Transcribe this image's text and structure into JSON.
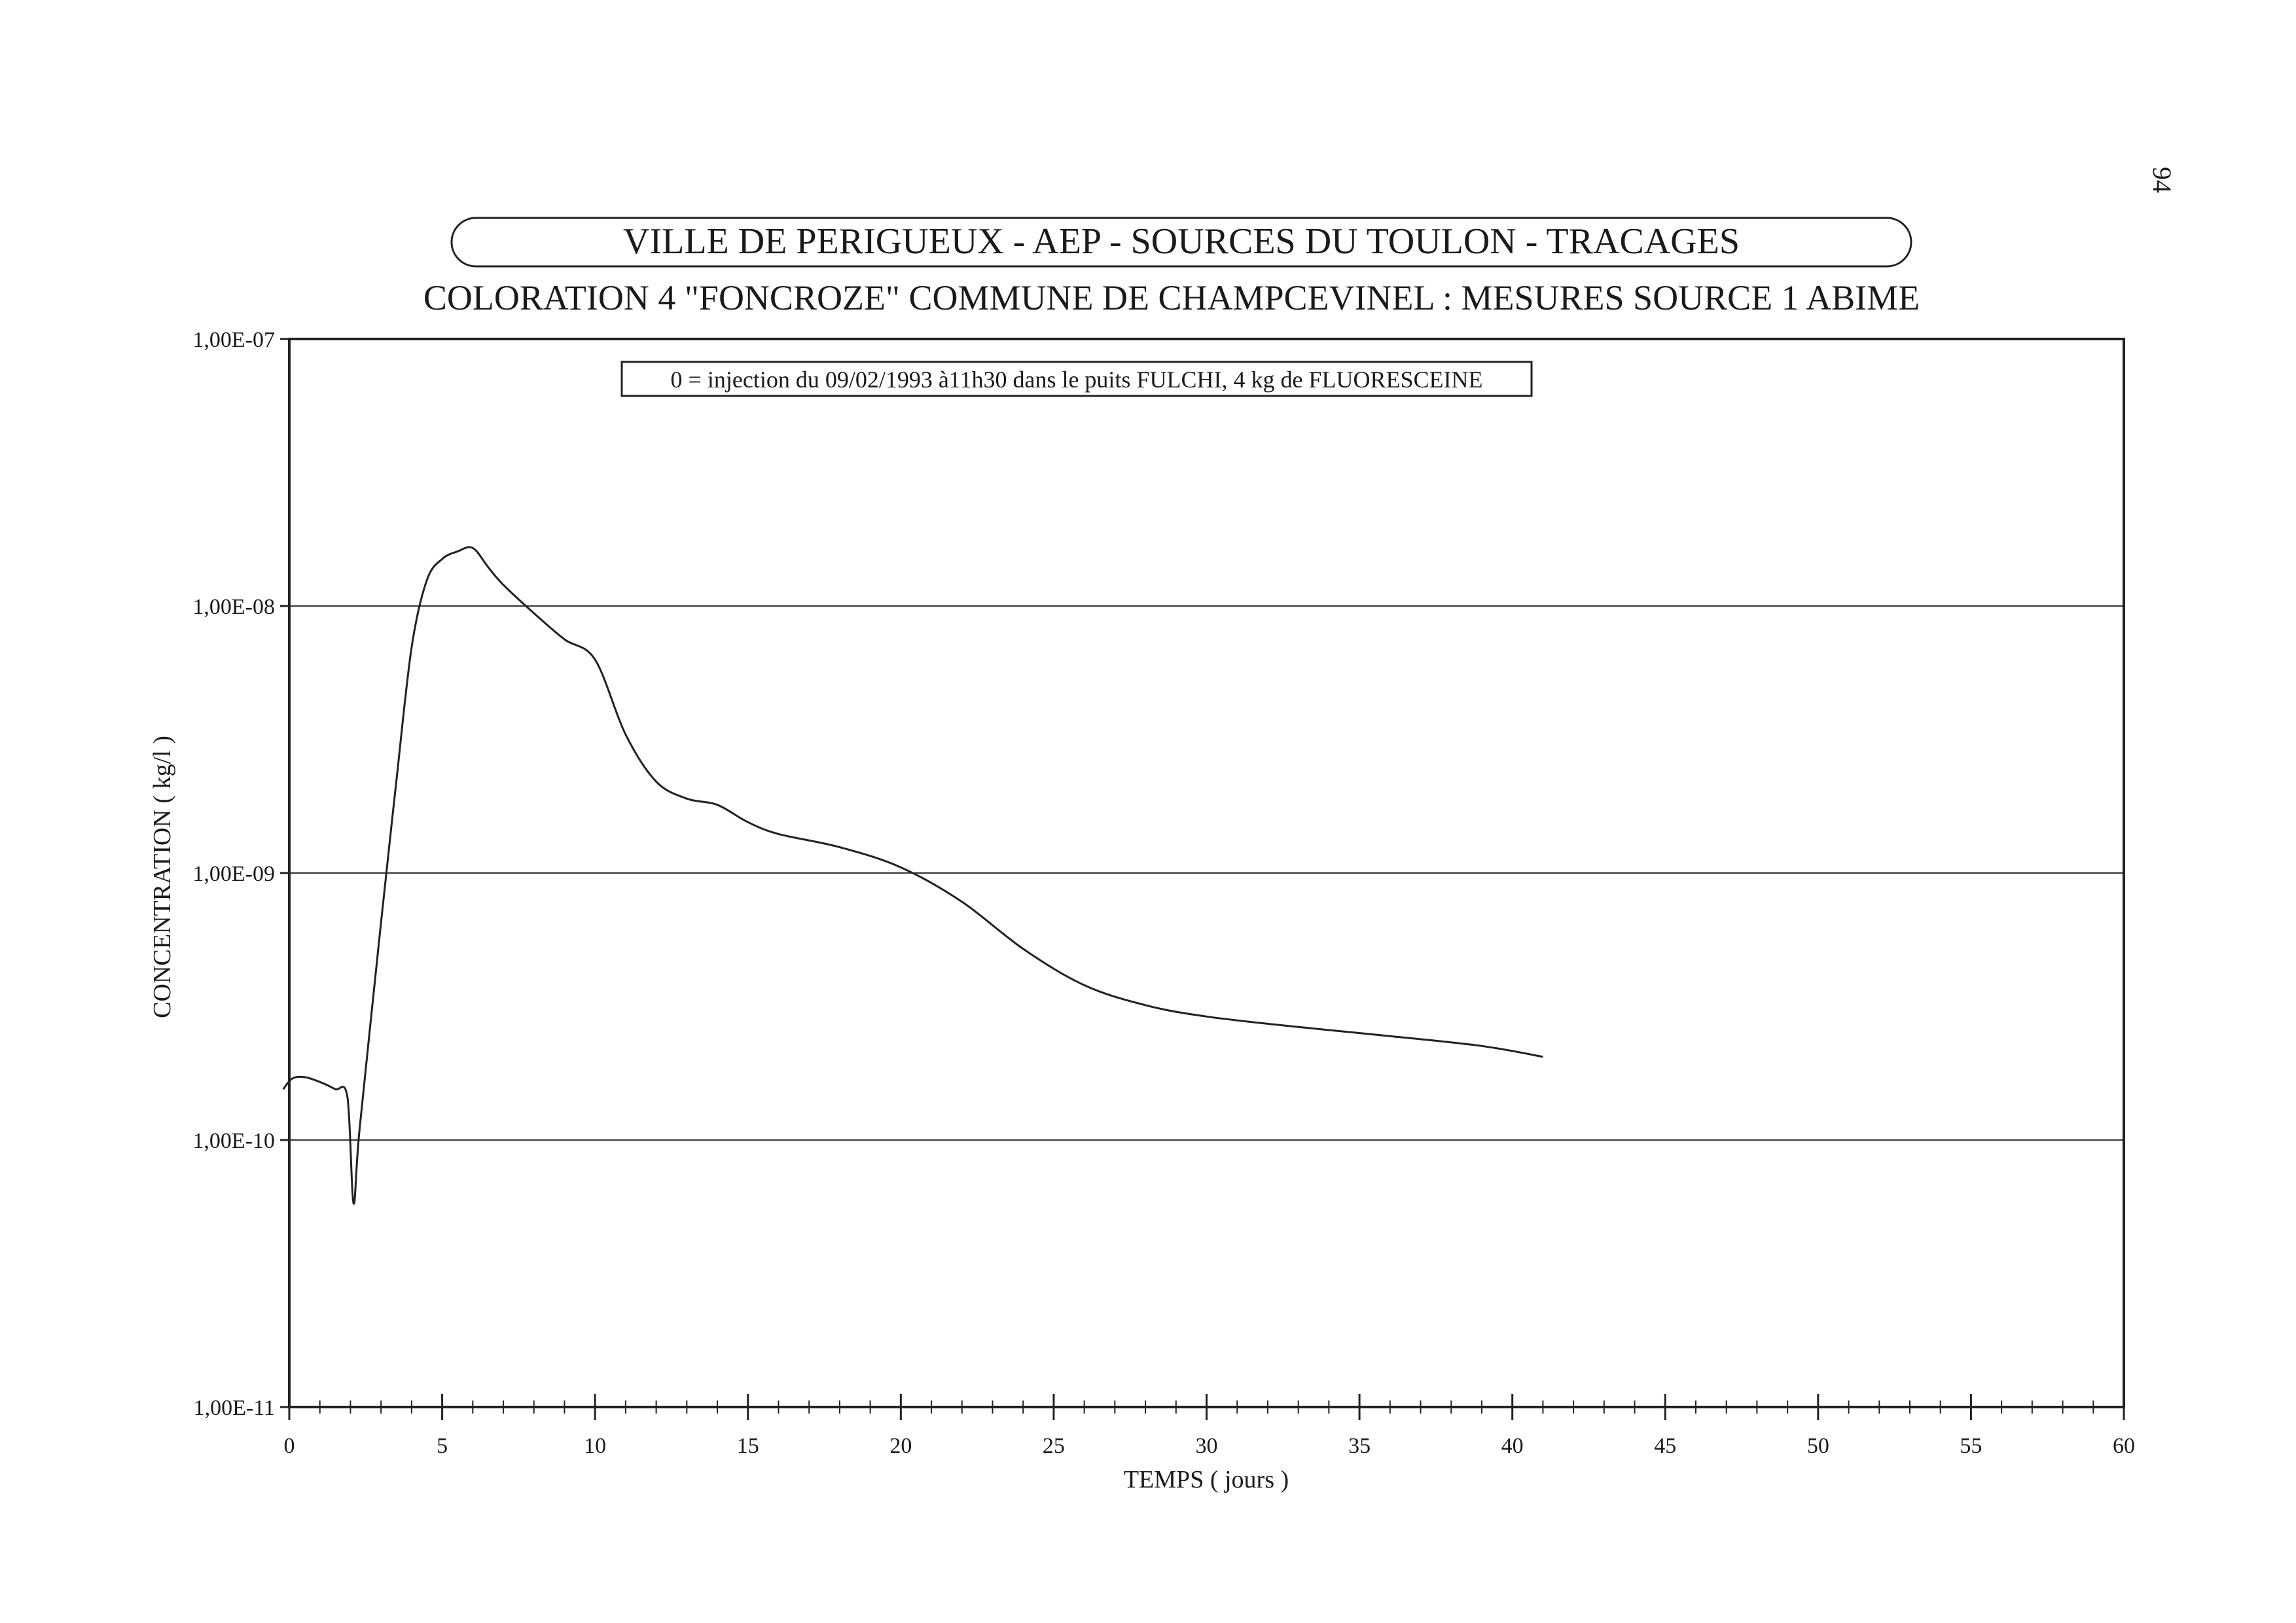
{
  "page_number": "94",
  "chart_data": {
    "type": "line",
    "title": "VILLE DE PERIGUEUX - AEP - SOURCES DU TOULON - TRACAGES",
    "subtitle": "COLORATION 4 \"FONCROZE\" COMMUNE DE CHAMPCEVINEL : MESURES SOURCE 1 ABIME",
    "annotation": "0 = injection du 09/02/1993 à11h30 dans le puits FULCHI, 4 kg de FLUORESCEINE",
    "xlabel": "TEMPS ( jours )",
    "ylabel": "CONCENTRATION ( kg/l )",
    "xlim": [
      0,
      60
    ],
    "ylim": [
      1e-11,
      1e-07
    ],
    "yscale": "log",
    "x_ticks": [
      0,
      5,
      10,
      15,
      20,
      25,
      30,
      35,
      40,
      45,
      50,
      55,
      60
    ],
    "x_tick_labels": [
      "0",
      "5",
      "10",
      "15",
      "20",
      "25",
      "30",
      "35",
      "40",
      "45",
      "50",
      "55",
      "60"
    ],
    "y_ticks": [
      1e-11,
      1e-10,
      1e-09,
      1e-08,
      1e-07
    ],
    "y_tick_labels": [
      "1,00E-11",
      "1,00E-10",
      "1,00E-09",
      "1,00E-08",
      "1,00E-07"
    ],
    "grid": "horizontal",
    "line_color": "#222222",
    "series": [
      {
        "x": [
          -0.2,
          0.1,
          0.5,
          1.0,
          1.5,
          1.9,
          2.1,
          2.3,
          3.0,
          3.5,
          4.0,
          4.5,
          5.0,
          5.5,
          6.0,
          6.5,
          7.0,
          8.0,
          9.0,
          10.0,
          11.0,
          12.0,
          13.0,
          14.0,
          15.0,
          16.0,
          18.0,
          20.0,
          22.0,
          24.0,
          26.0,
          28.0,
          30.0,
          33.0,
          36.0,
          39.0,
          41.0
        ],
        "y": [
          1.55e-10,
          1.7e-10,
          1.72e-10,
          1.65e-10,
          1.55e-10,
          1.45e-10,
          5.8e-11,
          1.1e-10,
          6.5e-10,
          2.2e-09,
          7e-09,
          1.25e-08,
          1.5e-08,
          1.6e-08,
          1.65e-08,
          1.4e-08,
          1.2e-08,
          9.4e-09,
          7.5e-09,
          6.3e-09,
          3.3e-09,
          2.2e-09,
          1.9e-09,
          1.8e-09,
          1.55e-09,
          1.4e-09,
          1.25e-09,
          1.05e-09,
          7.8e-10,
          5.2e-10,
          3.8e-10,
          3.2e-10,
          2.9e-10,
          2.65e-10,
          2.45e-10,
          2.25e-10,
          2.05e-10
        ]
      }
    ]
  }
}
